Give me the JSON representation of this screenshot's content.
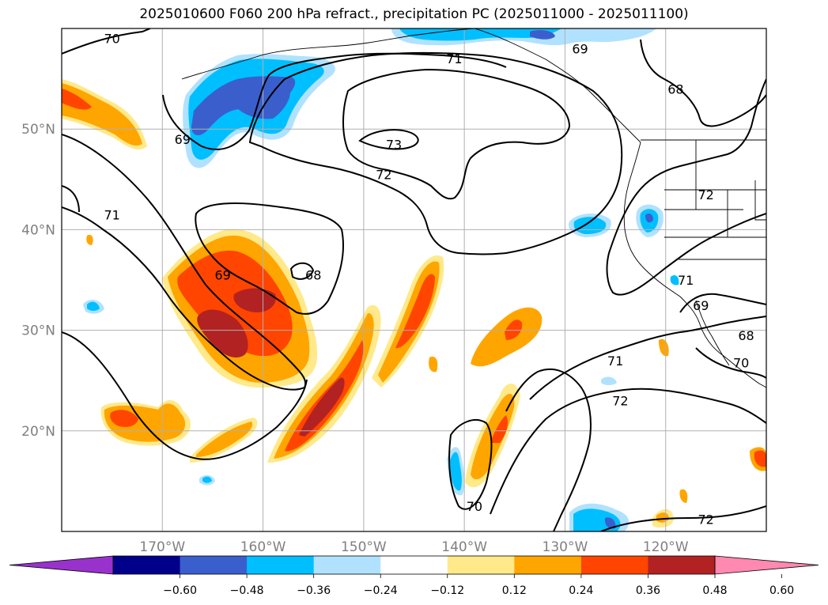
{
  "title": "2025010600 F060 200 hPa refract., precipitation PC (2025011000 - 2025011100)",
  "map": {
    "lon_range": [
      -180,
      -110
    ],
    "lat_range": [
      10,
      60
    ],
    "lon_ticks": [
      {
        "lon": -170,
        "label": "170°W"
      },
      {
        "lon": -160,
        "label": "160°W"
      },
      {
        "lon": -150,
        "label": "150°W"
      },
      {
        "lon": -140,
        "label": "140°W"
      },
      {
        "lon": -130,
        "label": "130°W"
      },
      {
        "lon": -120,
        "label": "120°W"
      }
    ],
    "lat_ticks": [
      {
        "lat": 50,
        "label": "50°N"
      },
      {
        "lat": 40,
        "label": "40°N"
      },
      {
        "lat": 30,
        "label": "30°N"
      },
      {
        "lat": 20,
        "label": "20°N"
      }
    ],
    "gridlines": true,
    "contour_labels": [
      {
        "text": "70",
        "lon": -175,
        "lat": 59
      },
      {
        "text": "71",
        "lon": -141,
        "lat": 57
      },
      {
        "text": "69",
        "lon": -128.5,
        "lat": 58
      },
      {
        "text": "68",
        "lon": -119,
        "lat": 54
      },
      {
        "text": "69",
        "lon": -168,
        "lat": 49
      },
      {
        "text": "73",
        "lon": -147,
        "lat": 48.5
      },
      {
        "text": "72",
        "lon": -148,
        "lat": 45.5
      },
      {
        "text": "72",
        "lon": -116,
        "lat": 43.5
      },
      {
        "text": "71",
        "lon": -175,
        "lat": 41.5
      },
      {
        "text": "69",
        "lon": -164,
        "lat": 35.5
      },
      {
        "text": "68",
        "lon": -155,
        "lat": 35.5
      },
      {
        "text": "71",
        "lon": -118,
        "lat": 35
      },
      {
        "text": "69",
        "lon": -116.5,
        "lat": 32.5
      },
      {
        "text": "68",
        "lon": -112,
        "lat": 29.5
      },
      {
        "text": "70",
        "lon": -112.5,
        "lat": 26.8
      },
      {
        "text": "71",
        "lon": -125,
        "lat": 27
      },
      {
        "text": "72",
        "lon": -124.5,
        "lat": 23
      },
      {
        "text": "70",
        "lon": -139,
        "lat": 12.5
      },
      {
        "text": "72",
        "lon": -116,
        "lat": 11.2
      }
    ]
  },
  "legend": {
    "colors": [
      "#9932cc",
      "#00008b",
      "#3a5fcd",
      "#00bfff",
      "#b0e2ff",
      "#ffffff",
      "#ffe98a",
      "#ffa500",
      "#ff4500",
      "#b22222",
      "#ff89b0"
    ],
    "tick_labels": [
      "−0.60",
      "−0.48",
      "−0.36",
      "−0.24",
      "−0.12",
      "0.12",
      "0.24",
      "0.36",
      "0.48",
      "0.60"
    ]
  },
  "chart_data": {
    "type": "heatmap",
    "title": "2025010600 F060 200 hPa refract., precipitation PC (2025011000 - 2025011100)",
    "filled_field": "precipitation PC",
    "contour_field": "200 hPa refract.",
    "contour_levels": [
      68,
      69,
      70,
      71,
      72,
      73
    ],
    "colorbar_levels": [
      -0.6,
      -0.48,
      -0.36,
      -0.24,
      -0.12,
      0.12,
      0.24,
      0.36,
      0.48,
      0.6
    ],
    "xlim": [
      -180,
      -110
    ],
    "ylim": [
      10,
      60
    ],
    "precip_features": [
      {
        "lon": -160,
        "lat": 34,
        "sign": "positive",
        "peak": 0.48
      },
      {
        "lon": -150,
        "lat": 24,
        "sign": "positive",
        "peak": 0.48
      },
      {
        "lon": -145,
        "lat": 30,
        "sign": "positive",
        "peak": 0.36
      },
      {
        "lon": -173,
        "lat": 21,
        "sign": "positive",
        "peak": 0.36
      },
      {
        "lon": -178,
        "lat": 53,
        "sign": "positive",
        "peak": 0.36
      },
      {
        "lon": -137,
        "lat": 20,
        "sign": "positive",
        "peak": 0.36
      },
      {
        "lon": -136,
        "lat": 30,
        "sign": "positive",
        "peak": 0.36
      },
      {
        "lon": -163,
        "lat": 53,
        "sign": "negative",
        "peak": -0.36
      },
      {
        "lon": -147,
        "lat": 59,
        "sign": "negative",
        "peak": -0.24
      },
      {
        "lon": -125,
        "lat": 40.5,
        "sign": "negative",
        "peak": -0.24
      },
      {
        "lon": -121,
        "lat": 41,
        "sign": "negative",
        "peak": -0.36
      },
      {
        "lon": -140,
        "lat": 16,
        "sign": "negative",
        "peak": -0.24
      },
      {
        "lon": -127,
        "lat": 12.5,
        "sign": "negative",
        "peak": -0.36
      }
    ]
  }
}
